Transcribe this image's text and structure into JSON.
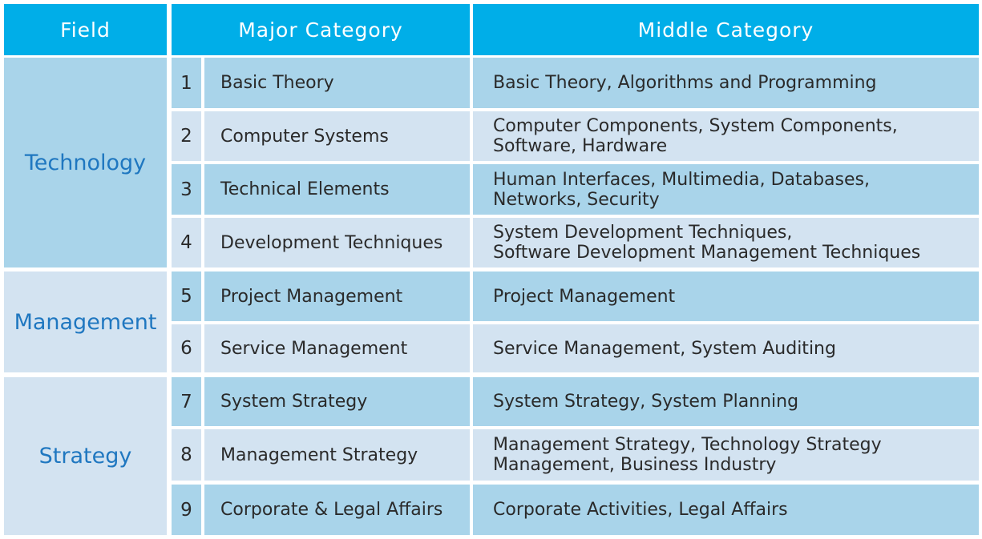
{
  "header": {
    "field": "Field",
    "major": "Major Category",
    "middle": "Middle Category"
  },
  "colors": {
    "header_bg": "#00aee8",
    "row_dark": "#a9d4ea",
    "row_light": "#d3e3f1",
    "field_text": "#1f77c0"
  },
  "fields": [
    {
      "name": "Technology"
    },
    {
      "name": "Management"
    },
    {
      "name": "Strategy"
    }
  ],
  "rows": [
    {
      "num": "1",
      "major": "Basic Theory",
      "middle": "Basic Theory, Algorithms and Programming"
    },
    {
      "num": "2",
      "major": "Computer Systems",
      "middle": "Computer Components, System Components,\nSoftware, Hardware"
    },
    {
      "num": "3",
      "major": "Technical Elements",
      "middle": "Human Interfaces, Multimedia, Databases,\nNetworks, Security"
    },
    {
      "num": "4",
      "major": "Development Techniques",
      "middle": "System Development Techniques,\nSoftware Development Management Techniques"
    },
    {
      "num": "5",
      "major": "Project Management",
      "middle": "Project Management"
    },
    {
      "num": "6",
      "major": "Service Management",
      "middle": "Service Management, System Auditing"
    },
    {
      "num": "7",
      "major": "System Strategy",
      "middle": "System Strategy, System Planning"
    },
    {
      "num": "8",
      "major": "Management Strategy",
      "middle": "Management Strategy, Technology Strategy\nManagement, Business Industry"
    },
    {
      "num": "9",
      "major": "Corporate & Legal Affairs",
      "middle": "Corporate Activities, Legal Affairs"
    }
  ]
}
